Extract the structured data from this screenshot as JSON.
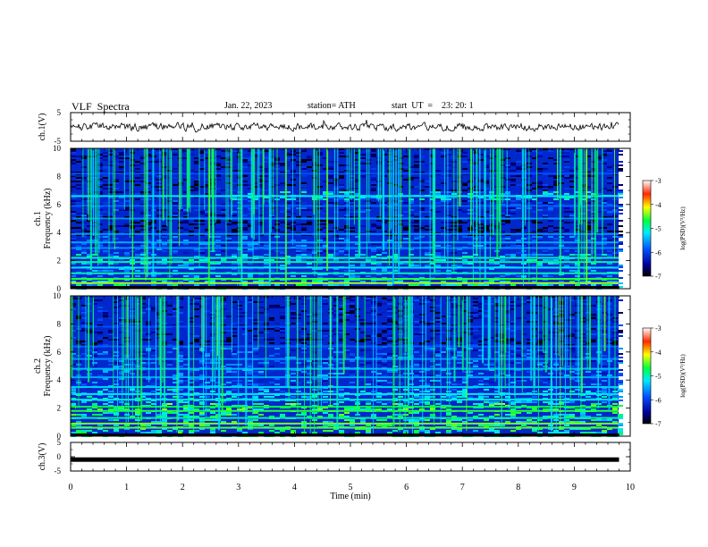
{
  "header": {
    "title": "VLF  Spectra",
    "date": "Jan. 22, 2023",
    "station": "station= ATH",
    "start": "start  UT  =    23: 20: 1"
  },
  "chart_data": [
    {
      "type": "line",
      "panel": "ch1-waveform",
      "ylabel": "ch.1(V)",
      "ylim": [
        -5,
        5
      ],
      "y_ticks": [
        "5",
        "-5"
      ],
      "xlim": [
        0,
        10
      ],
      "series_color": "#000000",
      "approx_level": 0,
      "approx_amplitude": 1
    },
    {
      "type": "heatmap",
      "panel": "ch1-spectrogram",
      "ylabel": "ch.1\nFrequency  (kHz)",
      "ylim": [
        0,
        10
      ],
      "y_ticks": [
        "0",
        "2",
        "4",
        "6",
        "8",
        "10"
      ],
      "xlim": [
        0,
        9.8
      ],
      "colorbar": {
        "label": "log(PSD)(V²/Hz)",
        "range": [
          -7,
          -3
        ],
        "ticks": [
          "-3",
          "-4",
          "-5",
          "-6",
          "-7"
        ]
      }
    },
    {
      "type": "heatmap",
      "panel": "ch2-spectrogram",
      "ylabel": "ch.2\nFrequency  (kHz)",
      "ylim": [
        0,
        10
      ],
      "y_ticks": [
        "0",
        "2",
        "4",
        "6",
        "8",
        "10"
      ],
      "xlim": [
        0,
        9.8
      ],
      "colorbar": {
        "label": "log(PSD)(V²/Hz)",
        "range": [
          -7,
          -3
        ],
        "ticks": [
          "-3",
          "-4",
          "-5",
          "-6",
          "-7"
        ]
      }
    },
    {
      "type": "line",
      "panel": "ch3-waveform",
      "ylabel": "ch.3(V)",
      "ylim": [
        -5,
        5
      ],
      "y_ticks": [
        "5",
        "0",
        "-5"
      ],
      "xlim": [
        0,
        10
      ],
      "series_color": "#000000",
      "approx_level": -1
    }
  ],
  "xaxis": {
    "label": "Time  (min)",
    "ticks": [
      "0",
      "1",
      "2",
      "3",
      "4",
      "5",
      "6",
      "7",
      "8",
      "9",
      "10"
    ]
  }
}
